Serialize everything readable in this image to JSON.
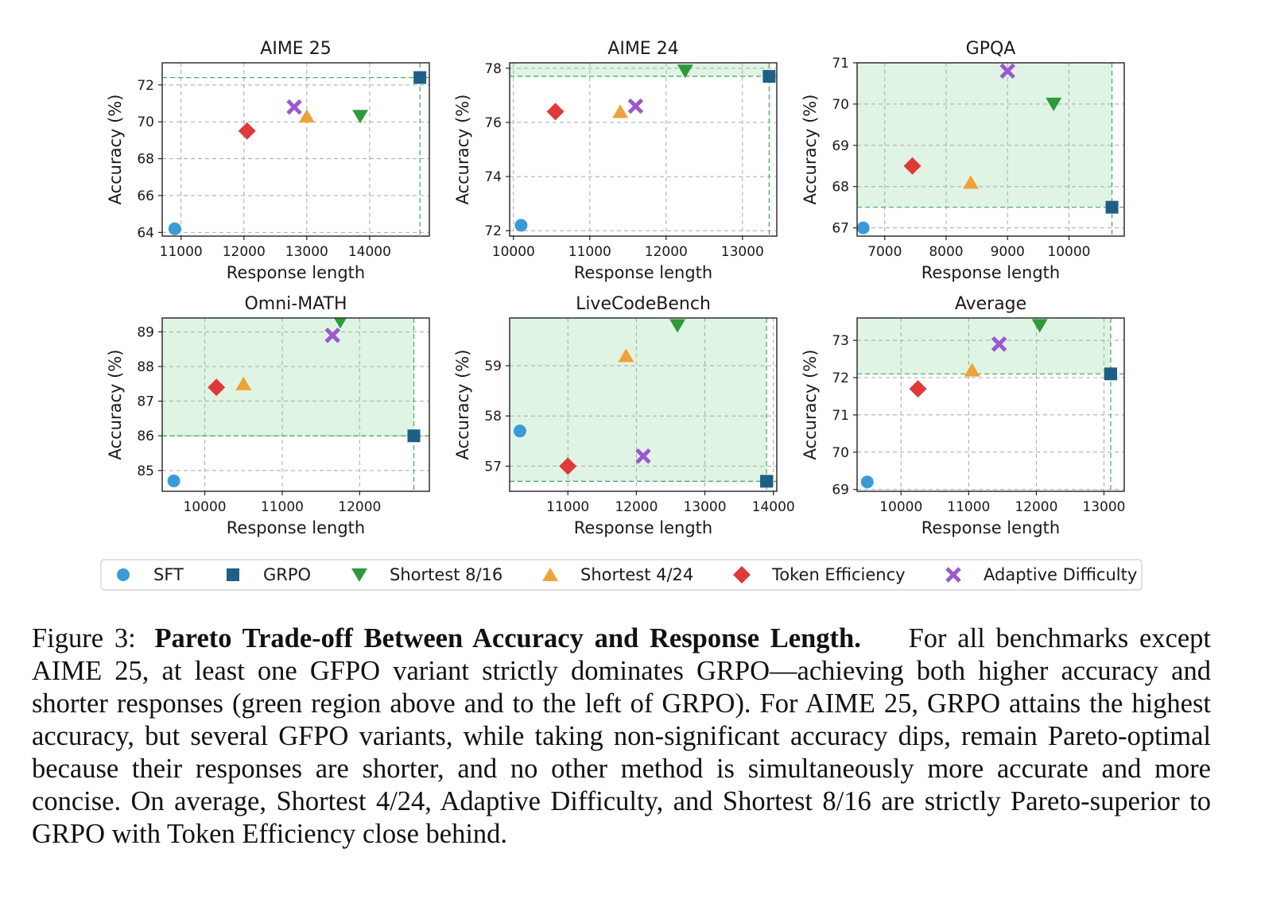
{
  "chart_data": [
    {
      "type": "scatter",
      "title": "AIME 25",
      "xlabel": "Response length",
      "ylabel": "Accuracy (%)",
      "xlim": [
        10700,
        14950
      ],
      "ylim": [
        63.8,
        73.2
      ],
      "xticks": [
        11000,
        12000,
        13000,
        14000
      ],
      "yticks": [
        64,
        66,
        68,
        70,
        72
      ],
      "grid": true,
      "points": [
        {
          "series": "SFT",
          "x": 10900,
          "y": 64.2
        },
        {
          "series": "GRPO",
          "x": 14800,
          "y": 72.4
        },
        {
          "series": "Shortest 8/16",
          "x": 13850,
          "y": 70.3
        },
        {
          "series": "Shortest 4/24",
          "x": 13000,
          "y": 70.3
        },
        {
          "series": "Token Efficiency",
          "x": 12050,
          "y": 69.5
        },
        {
          "series": "Adaptive Difficulty",
          "x": 12800,
          "y": 70.8
        }
      ],
      "reference": {
        "x": 14800,
        "y": 72.4
      },
      "dominance_region": false
    },
    {
      "type": "scatter",
      "title": "AIME 24",
      "xlabel": "Response length",
      "ylabel": "Accuracy (%)",
      "xlim": [
        9950,
        13450
      ],
      "ylim": [
        71.8,
        78.2
      ],
      "xticks": [
        10000,
        11000,
        12000,
        13000
      ],
      "yticks": [
        72,
        74,
        76,
        78
      ],
      "grid": true,
      "points": [
        {
          "series": "SFT",
          "x": 10100,
          "y": 72.2
        },
        {
          "series": "GRPO",
          "x": 13350,
          "y": 77.7
        },
        {
          "series": "Shortest 8/16",
          "x": 12250,
          "y": 77.9
        },
        {
          "series": "Shortest 4/24",
          "x": 11400,
          "y": 76.4
        },
        {
          "series": "Token Efficiency",
          "x": 10550,
          "y": 76.4
        },
        {
          "series": "Adaptive Difficulty",
          "x": 11600,
          "y": 76.6
        }
      ],
      "reference": {
        "x": 13350,
        "y": 77.7
      },
      "dominance_region": true
    },
    {
      "type": "scatter",
      "title": "GPQA",
      "xlabel": "Response length",
      "ylabel": "Accuracy (%)",
      "xlim": [
        6550,
        10900
      ],
      "ylim": [
        66.8,
        71.0
      ],
      "xticks": [
        7000,
        8000,
        9000,
        10000
      ],
      "yticks": [
        67,
        68,
        69,
        70,
        71
      ],
      "grid": true,
      "points": [
        {
          "series": "SFT",
          "x": 6650,
          "y": 67.0
        },
        {
          "series": "GRPO",
          "x": 10700,
          "y": 67.5
        },
        {
          "series": "Shortest 8/16",
          "x": 9750,
          "y": 70.0
        },
        {
          "series": "Shortest 4/24",
          "x": 8400,
          "y": 68.1
        },
        {
          "series": "Token Efficiency",
          "x": 7450,
          "y": 68.5
        },
        {
          "series": "Adaptive Difficulty",
          "x": 9000,
          "y": 70.8
        }
      ],
      "reference": {
        "x": 10700,
        "y": 67.5
      },
      "dominance_region": true
    },
    {
      "type": "scatter",
      "title": "Omni-MATH",
      "xlabel": "Response length",
      "ylabel": "Accuracy (%)",
      "xlim": [
        9450,
        12900
      ],
      "ylim": [
        84.4,
        89.4
      ],
      "xticks": [
        10000,
        11000,
        12000
      ],
      "yticks": [
        85,
        86,
        87,
        88,
        89
      ],
      "grid": true,
      "points": [
        {
          "series": "SFT",
          "x": 9600,
          "y": 84.7
        },
        {
          "series": "GRPO",
          "x": 12700,
          "y": 86.0
        },
        {
          "series": "Shortest 8/16",
          "x": 11750,
          "y": 89.3
        },
        {
          "series": "Shortest 4/24",
          "x": 10500,
          "y": 87.5
        },
        {
          "series": "Token Efficiency",
          "x": 10150,
          "y": 87.4
        },
        {
          "series": "Adaptive Difficulty",
          "x": 11650,
          "y": 88.9
        }
      ],
      "reference": {
        "x": 12700,
        "y": 86.0
      },
      "dominance_region": true
    },
    {
      "type": "scatter",
      "title": "LiveCodeBench",
      "xlabel": "Response length",
      "ylabel": "Accuracy (%)",
      "xlim": [
        10150,
        14050
      ],
      "ylim": [
        56.5,
        59.95
      ],
      "xticks": [
        11000,
        12000,
        13000,
        14000
      ],
      "yticks": [
        57,
        58,
        59
      ],
      "grid": true,
      "points": [
        {
          "series": "SFT",
          "x": 10300,
          "y": 57.7
        },
        {
          "series": "GRPO",
          "x": 13900,
          "y": 56.7
        },
        {
          "series": "Shortest 8/16",
          "x": 12600,
          "y": 59.8
        },
        {
          "series": "Shortest 4/24",
          "x": 11850,
          "y": 59.2
        },
        {
          "series": "Token Efficiency",
          "x": 11000,
          "y": 57.0
        },
        {
          "series": "Adaptive Difficulty",
          "x": 12100,
          "y": 57.2
        }
      ],
      "reference": {
        "x": 13900,
        "y": 56.7
      },
      "dominance_region": true
    },
    {
      "type": "scatter",
      "title": "Average",
      "xlabel": "Response length",
      "ylabel": "Accuracy (%)",
      "xlim": [
        9350,
        13300
      ],
      "ylim": [
        68.95,
        73.6
      ],
      "xticks": [
        10000,
        11000,
        12000,
        13000
      ],
      "yticks": [
        69,
        70,
        71,
        72,
        73
      ],
      "grid": true,
      "points": [
        {
          "series": "SFT",
          "x": 9500,
          "y": 69.2
        },
        {
          "series": "GRPO",
          "x": 13100,
          "y": 72.1
        },
        {
          "series": "Shortest 8/16",
          "x": 12050,
          "y": 73.4
        },
        {
          "series": "Shortest 4/24",
          "x": 11050,
          "y": 72.2
        },
        {
          "series": "Token Efficiency",
          "x": 10250,
          "y": 71.7
        },
        {
          "series": "Adaptive Difficulty",
          "x": 11450,
          "y": 72.9
        }
      ],
      "reference": {
        "x": 13100,
        "y": 72.1
      },
      "dominance_region": true
    }
  ],
  "legend": {
    "placement": "bottom-center",
    "entries": [
      {
        "name": "SFT",
        "marker": "circle",
        "color": "#3a9ad9"
      },
      {
        "name": "GRPO",
        "marker": "square",
        "color": "#1f5f86"
      },
      {
        "name": "Shortest 8/16",
        "marker": "triangle-down",
        "color": "#2e9a3c"
      },
      {
        "name": "Shortest 4/24",
        "marker": "triangle-up",
        "color": "#eea23a"
      },
      {
        "name": "Token Efficiency",
        "marker": "diamond",
        "color": "#df3a3a"
      },
      {
        "name": "Adaptive Difficulty",
        "marker": "x",
        "color": "#9b59d0"
      }
    ]
  },
  "caption": {
    "label": "Figure 3:",
    "title": "Pareto Trade-off Between Accuracy and Response Length.",
    "body": "For all benchmarks except AIME 25, at least one GFPO variant strictly dominates GRPO—achieving both higher accuracy and shorter responses (green region above and to the left of GRPO). For AIME 25, GRPO attains the highest accuracy, but several GFPO variants, while taking non-significant accuracy dips, remain Pareto-optimal because their responses are shorter, and no other method is simultaneously more accurate and more concise. On average, Shortest 4/24, Adaptive Difficulty, and Shortest 8/16 are strictly Pareto-superior to GRPO with Token Efficiency close behind."
  }
}
